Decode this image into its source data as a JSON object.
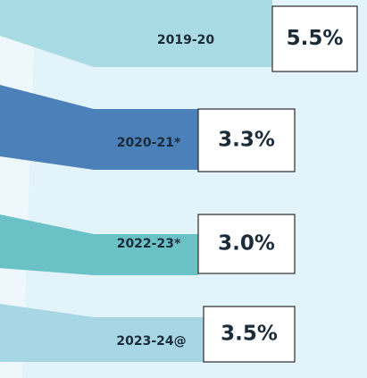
{
  "items": [
    {
      "label": "2019-20",
      "value": "5.5%"
    },
    {
      "label": "2020-21*",
      "value": "3.3%"
    },
    {
      "label": "2022-23*",
      "value": "3.0%"
    },
    {
      "label": "2023-24@",
      "value": "3.5%"
    }
  ]
}
